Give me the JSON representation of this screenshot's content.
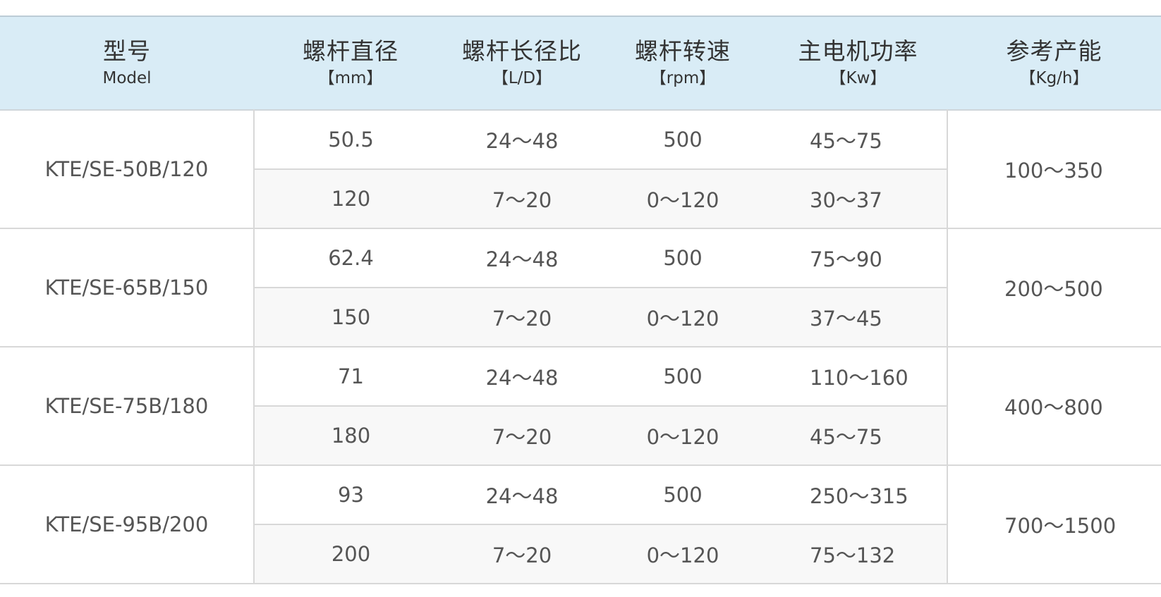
{
  "headers": [
    {
      "zh": "型号",
      "en": "Model"
    },
    {
      "zh": "螺杆直径",
      "en": "【mm】"
    },
    {
      "zh": "螺杆长径比",
      "en": "【L/D】"
    },
    {
      "zh": "螺杆转速",
      "en": "【rpm】"
    },
    {
      "zh": "主电机功率",
      "en": "【Kw】"
    },
    {
      "zh": "参考产能",
      "en": "【Kg/h】"
    }
  ],
  "rows": [
    {
      "model": "KTE/SE-50B/120",
      "capacity": "100～350",
      "sub": [
        {
          "diameter": "50.5",
          "ld": "24～48",
          "rpm": "500",
          "power": "45～75"
        },
        {
          "diameter": "120",
          "ld": "7～20",
          "rpm": "0～120",
          "power": "30～37"
        }
      ]
    },
    {
      "model": "KTE/SE-65B/150",
      "capacity": "200～500",
      "sub": [
        {
          "diameter": "62.4",
          "ld": "24～48",
          "rpm": "500",
          "power": "75～90"
        },
        {
          "diameter": "150",
          "ld": "7～20",
          "rpm": "0～120",
          "power": "37～45"
        }
      ]
    },
    {
      "model": "KTE/SE-75B/180",
      "capacity": "400～800",
      "sub": [
        {
          "diameter": "71",
          "ld": "24～48",
          "rpm": "500",
          "power": "110～160"
        },
        {
          "diameter": "180",
          "ld": "7～20",
          "rpm": "0～120",
          "power": "45～75"
        }
      ]
    },
    {
      "model": "KTE/SE-95B/200",
      "capacity": "700～1500",
      "sub": [
        {
          "diameter": "93",
          "ld": "24～48",
          "rpm": "500",
          "power": "250～315"
        },
        {
          "diameter": "200",
          "ld": "7～20",
          "rpm": "0～120",
          "power": "75～132"
        }
      ]
    }
  ],
  "colors": {
    "header_bg": "#d9ecf6",
    "alt_row_bg": "#f8f8f8",
    "text": "#555555"
  }
}
